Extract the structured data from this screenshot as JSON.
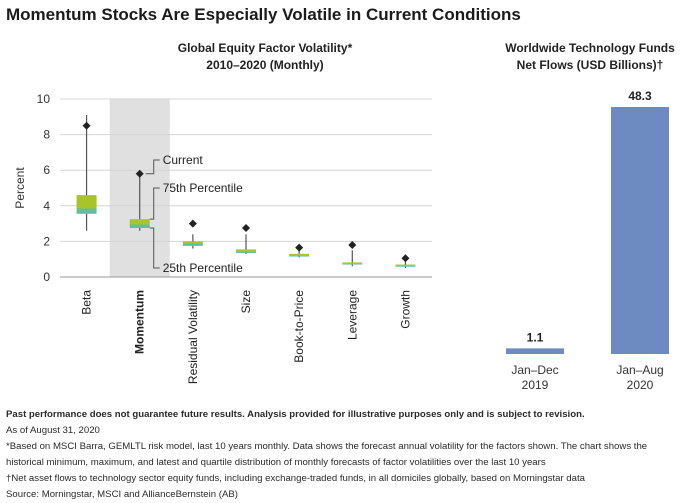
{
  "title": "Momentum Stocks Are Especially Volatile in Current Conditions",
  "chart_data": [
    {
      "type": "box",
      "title_line1": "Global Equity Factor Volatility*",
      "title_line2": "2010–2020 (Monthly)",
      "ylabel": "Percent",
      "ylim": [
        0,
        10
      ],
      "yticks": [
        "0",
        "2",
        "4",
        "6",
        "8",
        "10"
      ],
      "highlighted_category": "Momentum",
      "categories": [
        "Beta",
        "Momentum",
        "Residual Volatility",
        "Size",
        "Book-to-Price",
        "Leverage",
        "Growth"
      ],
      "factors": [
        {
          "name": "Beta",
          "min": 2.6,
          "q1": 3.55,
          "median": 3.85,
          "q3": 4.6,
          "max": 9.1,
          "current": 8.5
        },
        {
          "name": "Momentum",
          "min": 2.6,
          "q1": 2.75,
          "median": 2.95,
          "q3": 3.25,
          "max": 5.7,
          "current": 5.8
        },
        {
          "name": "Residual Volatility",
          "min": 1.6,
          "q1": 1.75,
          "median": 1.88,
          "q3": 2.0,
          "max": 2.4,
          "current": 3.0
        },
        {
          "name": "Size",
          "min": 1.3,
          "q1": 1.35,
          "median": 1.45,
          "q3": 1.55,
          "max": 2.4,
          "current": 2.75
        },
        {
          "name": "Book-to-Price",
          "min": 1.1,
          "q1": 1.15,
          "median": 1.22,
          "q3": 1.3,
          "max": 1.5,
          "current": 1.65
        },
        {
          "name": "Leverage",
          "min": 0.6,
          "q1": 0.7,
          "median": 0.77,
          "q3": 0.82,
          "max": 1.5,
          "current": 1.8
        },
        {
          "name": "Growth",
          "min": 0.5,
          "q1": 0.58,
          "median": 0.64,
          "q3": 0.7,
          "max": 0.85,
          "current": 1.05
        }
      ],
      "annotations": [
        "Current",
        "75th Percentile",
        "25th Percentile"
      ],
      "colors": {
        "upper_box": "#a8c42a",
        "lower_box": "#5fbf9f",
        "marker": "#222222",
        "highlight_band": "#e0e0e0",
        "whisker": "#555555"
      }
    },
    {
      "type": "bar",
      "title_line1": "Worldwide Technology Funds",
      "title_line2": "Net Flows (USD Billions)†",
      "categories": [
        {
          "line1": "Jan–Dec",
          "line2": "2019"
        },
        {
          "line1": "Jan–Aug",
          "line2": "2020"
        }
      ],
      "values": [
        1.1,
        48.3
      ],
      "data_labels": [
        "1.1",
        "48.3"
      ],
      "ylim": [
        0,
        48.3
      ],
      "color": "#6d8bc0"
    }
  ],
  "footnotes": {
    "disclaimer": "Past performance does not guarantee future results. Analysis provided for illustrative purposes only and is subject to revision.",
    "as_of": "As of August 31, 2020",
    "note_star": "*Based on MSCI Barra, GEMLTL risk model, last 10 years monthly. Data shows the forecast annual volatility for the factors shown. The chart shows the historical minimum, maximum, and latest and quartile distribution of monthly forecasts of factor volatilities over the last 10 years",
    "note_dagger": "†Net asset flows to technology sector equity funds, including exchange-traded funds, in all domiciles globally, based on Morningstar data",
    "source": "Source: Morningstar, MSCI and AllianceBernstein (AB)"
  }
}
